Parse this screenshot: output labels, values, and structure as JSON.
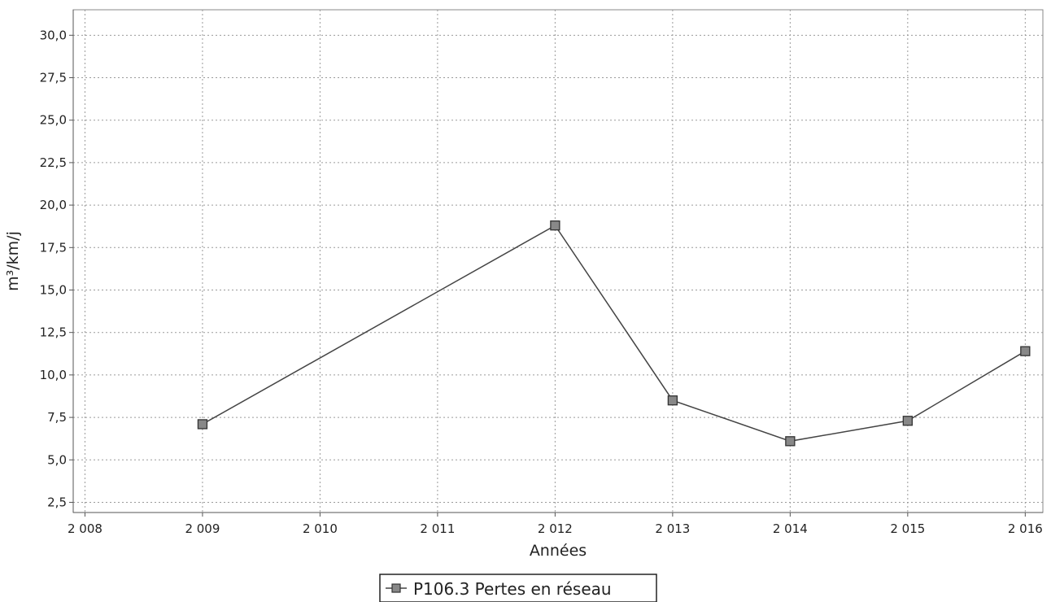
{
  "chart_data": {
    "type": "line",
    "title": "",
    "xlabel": "Années",
    "ylabel": "m³/km/j",
    "x_ticks": [
      "2 008",
      "2 009",
      "2 010",
      "2 011",
      "2 012",
      "2 013",
      "2 014",
      "2 015",
      "2 016"
    ],
    "x_tick_values": [
      2008,
      2009,
      2010,
      2011,
      2012,
      2013,
      2014,
      2015,
      2016
    ],
    "y_ticks": [
      "2,5",
      "5,0",
      "7,5",
      "10,0",
      "12,5",
      "15,0",
      "17,5",
      "20,0",
      "22,5",
      "25,0",
      "27,5",
      "30,0"
    ],
    "y_tick_values": [
      2.5,
      5,
      7.5,
      10,
      12.5,
      15,
      17.5,
      20,
      22.5,
      25,
      27.5,
      30
    ],
    "xlim": [
      2007.9,
      2016.15
    ],
    "ylim": [
      1.9,
      31.5
    ],
    "grid": true,
    "legend_position": "bottom-center",
    "series": [
      {
        "name": "P106.3 Pertes en réseau",
        "color": "#444444",
        "marker": "square",
        "x": [
          2009,
          2012,
          2013,
          2014,
          2015,
          2016
        ],
        "y": [
          7.1,
          18.8,
          8.5,
          6.1,
          7.3,
          11.4
        ]
      }
    ]
  }
}
